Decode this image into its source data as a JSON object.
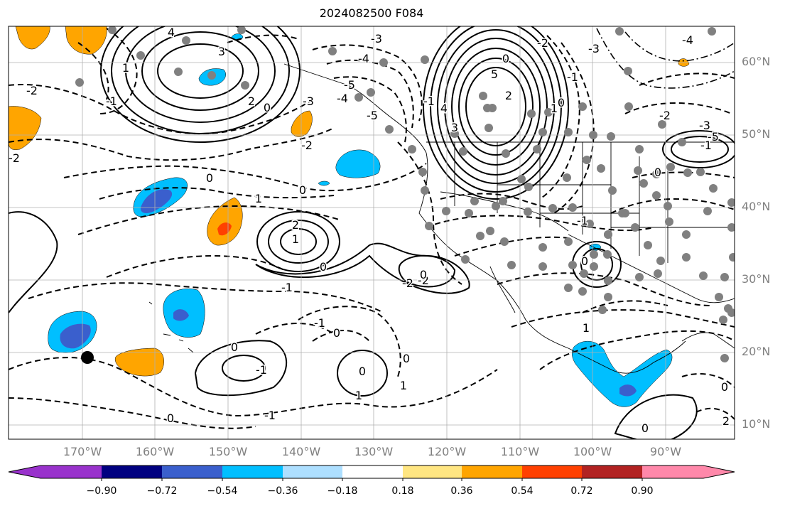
{
  "title": "2024082500 F084",
  "map": {
    "lat_labels": [
      "60°N",
      "50°N",
      "40°N",
      "30°N",
      "20°N",
      "10°N"
    ],
    "lon_labels": [
      "170°W",
      "160°W",
      "150°W",
      "140°W",
      "130°W",
      "120°W",
      "110°W",
      "100°W",
      "90°W"
    ],
    "contour_labels": [
      "4",
      "3",
      "2",
      "1",
      "0",
      "-2",
      "-1",
      "-2",
      "-3",
      "-4",
      "-5",
      "-5",
      "-4",
      "-3",
      "-2",
      "-1",
      "0",
      "5",
      "4",
      "3",
      "2",
      "1",
      "0",
      "-1",
      "-2",
      "-3",
      "-4",
      "-5",
      "-1",
      "-2",
      "-3",
      "0",
      "2",
      "1",
      "0",
      "1",
      "0",
      "0",
      "-1",
      "-2",
      "-2",
      "-1",
      "0",
      "0",
      "1",
      "0",
      "-1",
      "0",
      "0",
      "1",
      "0",
      "-1",
      "-1",
      "0",
      "1",
      "0",
      "0",
      "2"
    ],
    "gridlines": true,
    "coastlines": true
  },
  "colorbar": {
    "ticks": [
      "−0.90",
      "−0.72",
      "−0.54",
      "−0.36",
      "−0.18",
      "0.18",
      "0.36",
      "0.54",
      "0.72",
      "0.90"
    ],
    "colors": [
      "#9932CC",
      "#000080",
      "#3A5FCD",
      "#00BFFF",
      "#ADDFFF",
      "#FFFFFF",
      "#FFE682",
      "#FFA500",
      "#FF4000",
      "#B22222",
      "#FF88AA"
    ]
  },
  "legend_colors": {
    "blue_light": "#00BFFF",
    "blue_dark": "#3A5FCD",
    "orange": "#FFA500",
    "red": "#FF4000",
    "marker_gray": "#808080"
  }
}
